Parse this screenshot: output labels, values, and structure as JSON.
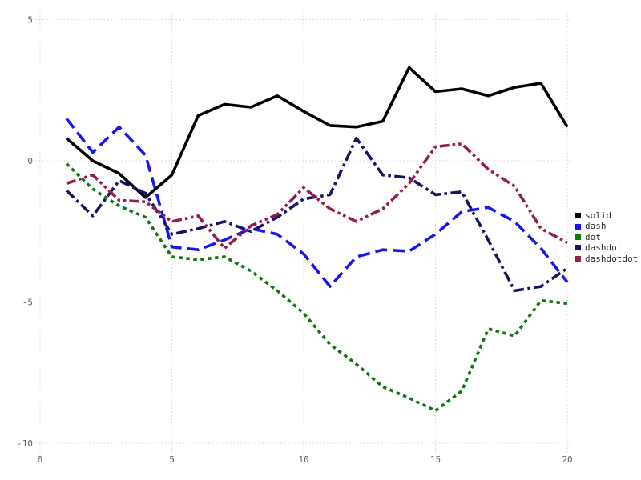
{
  "chart_data": {
    "type": "line",
    "title": "",
    "xlabel": "",
    "ylabel": "",
    "x": [
      1,
      2,
      3,
      4,
      5,
      6,
      7,
      8,
      9,
      10,
      11,
      12,
      13,
      14,
      15,
      16,
      17,
      18,
      19,
      20
    ],
    "series": [
      {
        "name": "solid",
        "style": "solid",
        "color": "#000000",
        "values": [
          0.8,
          0.0,
          -0.45,
          -1.3,
          -0.5,
          1.6,
          2.0,
          1.9,
          2.3,
          1.75,
          1.25,
          1.2,
          1.4,
          3.3,
          2.45,
          2.55,
          2.3,
          2.6,
          2.75,
          1.2
        ]
      },
      {
        "name": "dash",
        "style": "dash",
        "color": "#1616f0",
        "values": [
          1.5,
          0.3,
          1.2,
          0.2,
          -3.05,
          -3.15,
          -2.8,
          -2.4,
          -2.6,
          -3.3,
          -4.45,
          -3.4,
          -3.15,
          -3.2,
          -2.6,
          -1.8,
          -1.65,
          -2.15,
          -3.1,
          -4.3
        ]
      },
      {
        "name": "dot",
        "style": "dot",
        "color": "#0d780d",
        "values": [
          -0.1,
          -1.0,
          -1.6,
          -2.0,
          -3.4,
          -3.5,
          -3.4,
          -3.9,
          -4.6,
          -5.4,
          -6.5,
          -7.2,
          -8.0,
          -8.4,
          -8.85,
          -8.15,
          -5.95,
          -6.2,
          -4.95,
          -5.05
        ]
      },
      {
        "name": "dashdot",
        "style": "dashdot",
        "color": "#151565",
        "values": [
          -1.05,
          -1.95,
          -0.7,
          -1.15,
          -2.6,
          -2.4,
          -2.15,
          -2.5,
          -2.0,
          -1.35,
          -1.2,
          0.8,
          -0.5,
          -0.6,
          -1.2,
          -1.1,
          -2.8,
          -4.6,
          -4.45,
          -3.8
        ]
      },
      {
        "name": "dashdotdot",
        "style": "dashdotdot",
        "color": "#961b4e",
        "values": [
          -0.8,
          -0.5,
          -1.4,
          -1.45,
          -2.15,
          -1.95,
          -3.1,
          -2.3,
          -1.9,
          -0.95,
          -1.7,
          -2.15,
          -1.7,
          -0.8,
          0.5,
          0.6,
          -0.3,
          -0.9,
          -2.4,
          -2.9
        ]
      }
    ],
    "xlim": [
      -0.03,
      20.12
    ],
    "ylim": [
      -10.17,
      5.27
    ],
    "x_ticks": [
      0,
      5,
      10,
      15,
      20
    ],
    "y_ticks": [
      5,
      0,
      -5,
      -10
    ],
    "grid": true,
    "grid_style": "dotted",
    "legend_position": "right",
    "line_width": 3.6,
    "tick_label_color": "#606060",
    "grid_color": "#d4d4dc",
    "background_color": "#ffffff"
  }
}
